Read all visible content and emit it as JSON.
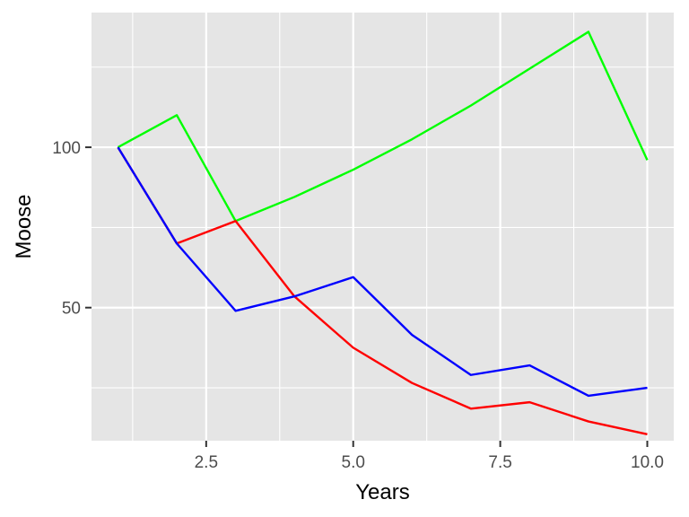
{
  "chart_data": {
    "type": "line",
    "title": "",
    "xlabel": "Years",
    "ylabel": "Moose",
    "xlim": [
      0.55,
      10.45
    ],
    "ylim": [
      8.5,
      142
    ],
    "x_ticks": [
      2.5,
      5.0,
      7.5,
      10.0
    ],
    "x_tick_labels": [
      "2.5",
      "5.0",
      "7.5",
      "10.0"
    ],
    "x_minor_ticks": [
      1.25,
      3.75,
      6.25,
      8.75
    ],
    "y_ticks": [
      50,
      100
    ],
    "y_tick_labels": [
      "50",
      "100"
    ],
    "y_minor_ticks": [
      25,
      75,
      125
    ],
    "grid": true,
    "legend": "none",
    "panel_background": "#e5e5e5",
    "grid_color": "#ffffff",
    "x": [
      1,
      2,
      3,
      4,
      5,
      6,
      7,
      8,
      9,
      10
    ],
    "series": [
      {
        "color": "#00ff00",
        "values": [
          100,
          110,
          77,
          84.5,
          93,
          102.5,
          113,
          124.5,
          136,
          96
        ]
      },
      {
        "color": "#ff0000",
        "values": [
          100,
          70,
          77,
          53.5,
          37.5,
          26.5,
          18.5,
          20.5,
          14.5,
          10.5
        ]
      },
      {
        "color": "#0000ff",
        "values": [
          100,
          70,
          49,
          53.5,
          59.5,
          41.5,
          29,
          32,
          22.5,
          25
        ]
      }
    ]
  }
}
